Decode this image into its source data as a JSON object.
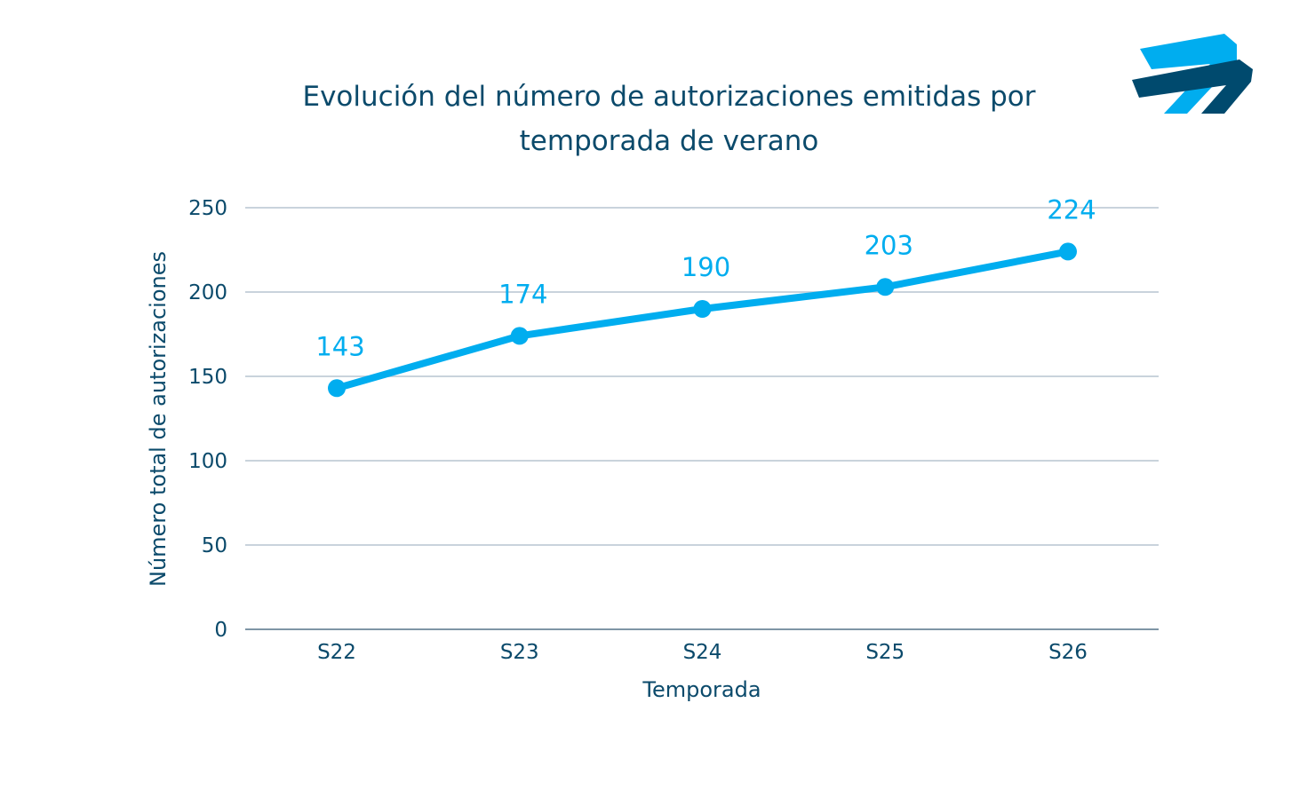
{
  "chart_data": {
    "type": "line",
    "title": "Evolución del número de autorizaciones emitidas por temporada de verano",
    "title_lines": [
      "Evolución del número de autorizaciones emitidas por",
      "temporada de verano"
    ],
    "xlabel": "Temporada",
    "ylabel": "Número total de autorizaciones",
    "categories": [
      "S22",
      "S23",
      "S24",
      "S25",
      "S26"
    ],
    "values": [
      143,
      174,
      190,
      203,
      224
    ],
    "data_labels": [
      "143",
      "174",
      "190",
      "203",
      "224"
    ],
    "ylim": [
      0,
      250
    ],
    "yticks": [
      0,
      50,
      100,
      150,
      200,
      250
    ],
    "grid": true,
    "legend": "none",
    "colors": {
      "series": "#00adef",
      "text": "#0b4a6b",
      "grid": "#c9d3dc",
      "axis": "#7f95a6",
      "logo_light": "#00adef",
      "logo_dark": "#004a6e"
    }
  },
  "logo": {
    "icon": "company-logo"
  }
}
